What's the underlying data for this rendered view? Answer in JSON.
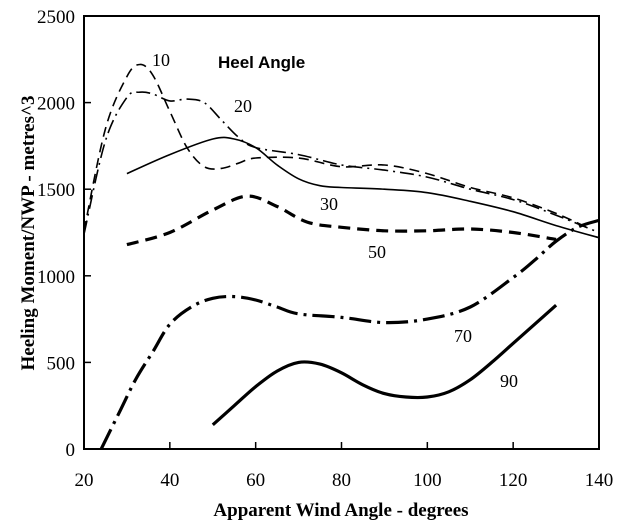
{
  "chart_data": {
    "type": "line",
    "title": "",
    "xlabel": "Apparent Wind Angle - degrees",
    "ylabel": "Heeling Moment/NWP - metres^3",
    "xlim": [
      20,
      140
    ],
    "ylim": [
      0,
      2500
    ],
    "xticks": [
      "20",
      "40",
      "60",
      "80",
      "100",
      "120",
      "140"
    ],
    "yticks": [
      "0",
      "500",
      "1000",
      "1500",
      "2000",
      "2500"
    ],
    "legend_title": "Heel Angle",
    "grid": false,
    "series": [
      {
        "name": "10",
        "style": "dashed",
        "x": [
          20,
          25,
          30,
          33,
          36,
          40,
          44,
          48,
          52,
          56,
          60,
          70,
          80,
          90,
          100,
          110,
          120,
          130,
          138
        ],
        "y": [
          1260,
          1850,
          2150,
          2220,
          2160,
          1950,
          1740,
          1630,
          1620,
          1650,
          1680,
          1680,
          1630,
          1640,
          1590,
          1510,
          1450,
          1360,
          1270
        ]
      },
      {
        "name": "20",
        "style": "dash-dot",
        "x": [
          20,
          25,
          30,
          33,
          36,
          40,
          44,
          48,
          52,
          56,
          60,
          70,
          80,
          90,
          100,
          110,
          120,
          130,
          140
        ],
        "y": [
          1240,
          1780,
          2030,
          2060,
          2050,
          2010,
          2020,
          2000,
          1900,
          1800,
          1740,
          1700,
          1640,
          1610,
          1570,
          1500,
          1440,
          1350,
          1250
        ]
      },
      {
        "name": "30",
        "style": "solid",
        "x": [
          30,
          40,
          50,
          55,
          60,
          65,
          70,
          75,
          80,
          90,
          100,
          110,
          120,
          130,
          140
        ],
        "y": [
          1590,
          1700,
          1790,
          1790,
          1740,
          1640,
          1560,
          1520,
          1510,
          1500,
          1480,
          1430,
          1370,
          1290,
          1220
        ]
      },
      {
        "name": "50",
        "style": "bold-dashed",
        "x": [
          30,
          40,
          50,
          58,
          65,
          72,
          80,
          90,
          100,
          110,
          120,
          130
        ],
        "y": [
          1180,
          1250,
          1380,
          1460,
          1400,
          1310,
          1280,
          1260,
          1260,
          1270,
          1250,
          1210
        ]
      },
      {
        "name": "70",
        "style": "bold-dash-dot",
        "x": [
          24,
          28,
          32,
          36,
          40,
          45,
          50,
          55,
          60,
          65,
          70,
          80,
          90,
          100,
          110,
          120,
          125,
          130,
          135,
          140
        ],
        "y": [
          0,
          200,
          400,
          560,
          720,
          820,
          870,
          880,
          860,
          820,
          780,
          760,
          730,
          750,
          820,
          990,
          1090,
          1200,
          1280,
          1320
        ]
      },
      {
        "name": "90",
        "style": "bold-solid",
        "x": [
          50,
          55,
          60,
          65,
          70,
          75,
          80,
          85,
          90,
          95,
          100,
          105,
          110,
          115,
          120,
          125,
          130
        ],
        "y": [
          140,
          250,
          360,
          450,
          500,
          490,
          440,
          370,
          320,
          300,
          300,
          330,
          400,
          500,
          610,
          720,
          830
        ]
      }
    ],
    "labels": {
      "s10": "10",
      "s20": "20",
      "s30": "30",
      "s50": "50",
      "s70": "70",
      "s90": "90"
    }
  }
}
